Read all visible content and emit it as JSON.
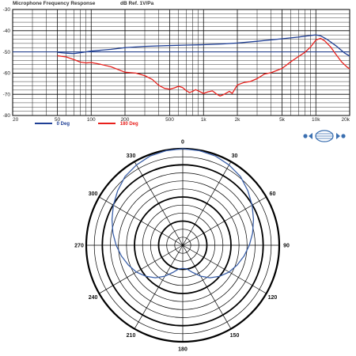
{
  "chart_data": [
    {
      "type": "line",
      "title": "Microphone Frequency Response",
      "reference": "dB Ref. 1V/Pa",
      "x_scale": "log",
      "xlim": [
        20,
        20000
      ],
      "ylim": [
        -80,
        -30
      ],
      "grid": true,
      "legend_placement": "bottom",
      "x_tick_labels": [
        {
          "v": 20,
          "t": "20"
        },
        {
          "v": 50,
          "t": "50"
        },
        {
          "v": 100,
          "t": "100"
        },
        {
          "v": 200,
          "t": "200"
        },
        {
          "v": 500,
          "t": "500"
        },
        {
          "v": 1000,
          "t": "1k"
        },
        {
          "v": 2000,
          "t": "2k"
        },
        {
          "v": 5000,
          "t": "5k"
        },
        {
          "v": 10000,
          "t": "10k"
        },
        {
          "v": 20000,
          "t": "20k"
        }
      ],
      "y_tick_labels": [
        {
          "v": -30,
          "t": "-30"
        },
        {
          "v": -40,
          "t": "-40"
        },
        {
          "v": -50,
          "t": "-50"
        },
        {
          "v": -60,
          "t": "-60"
        },
        {
          "v": -70,
          "t": "-70"
        },
        {
          "v": -80,
          "t": "-80"
        }
      ],
      "series": [
        {
          "name": "0 Deg",
          "color": "#1f3f95",
          "points": [
            [
              50,
              -50.2
            ],
            [
              60,
              -50.6
            ],
            [
              70,
              -50.8
            ],
            [
              85,
              -50.2
            ],
            [
              100,
              -49.6
            ],
            [
              150,
              -48.8
            ],
            [
              200,
              -48.0
            ],
            [
              300,
              -47.4
            ],
            [
              500,
              -47.0
            ],
            [
              700,
              -46.8
            ],
            [
              1000,
              -46.6
            ],
            [
              1500,
              -46.2
            ],
            [
              2000,
              -45.8
            ],
            [
              3000,
              -45.0
            ],
            [
              5000,
              -43.8
            ],
            [
              7000,
              -43.0
            ],
            [
              8500,
              -42.4
            ],
            [
              10000,
              -42.0
            ],
            [
              11000,
              -42.4
            ],
            [
              12500,
              -44.0
            ],
            [
              15000,
              -47.0
            ],
            [
              18000,
              -50.5
            ],
            [
              20000,
              -52.0
            ]
          ]
        },
        {
          "name": "180 Deg",
          "color": "#e8201c",
          "points": [
            [
              50,
              -51.8
            ],
            [
              60,
              -52.4
            ],
            [
              70,
              -53.6
            ],
            [
              80,
              -54.8
            ],
            [
              90,
              -55.2
            ],
            [
              100,
              -55.0
            ],
            [
              120,
              -55.8
            ],
            [
              150,
              -57.0
            ],
            [
              200,
              -59.6
            ],
            [
              250,
              -60.0
            ],
            [
              300,
              -61.2
            ],
            [
              350,
              -63.0
            ],
            [
              400,
              -65.8
            ],
            [
              450,
              -67.2
            ],
            [
              500,
              -67.6
            ],
            [
              550,
              -67.0
            ],
            [
              600,
              -66.2
            ],
            [
              650,
              -66.8
            ],
            [
              700,
              -68.2
            ],
            [
              750,
              -69.2
            ],
            [
              800,
              -68.6
            ],
            [
              850,
              -67.8
            ],
            [
              900,
              -68.4
            ],
            [
              1000,
              -69.6
            ],
            [
              1100,
              -68.8
            ],
            [
              1200,
              -68.4
            ],
            [
              1300,
              -69.8
            ],
            [
              1400,
              -70.8
            ],
            [
              1500,
              -70.2
            ],
            [
              1600,
              -69.4
            ],
            [
              1700,
              -68.6
            ],
            [
              1800,
              -69.6
            ],
            [
              2000,
              -65.6
            ],
            [
              2300,
              -64.4
            ],
            [
              2600,
              -64.0
            ],
            [
              3000,
              -62.6
            ],
            [
              3500,
              -60.4
            ],
            [
              4000,
              -59.8
            ],
            [
              5000,
              -57.8
            ],
            [
              6000,
              -54.6
            ],
            [
              7000,
              -52.2
            ],
            [
              8000,
              -50.2
            ],
            [
              9000,
              -47.6
            ],
            [
              10000,
              -44.4
            ],
            [
              11000,
              -43.6
            ],
            [
              12000,
              -44.8
            ],
            [
              13500,
              -47.6
            ],
            [
              15000,
              -51.0
            ],
            [
              17000,
              -54.8
            ],
            [
              19000,
              -57.2
            ],
            [
              20000,
              -58.0
            ]
          ]
        }
      ]
    },
    {
      "type": "polar",
      "angle_labels": [
        "0",
        "30",
        "60",
        "90",
        "120",
        "150",
        "180",
        "210",
        "240",
        "270",
        "300",
        "330"
      ],
      "radial_rings": 12,
      "bold_rings": [
        3,
        6,
        10,
        12
      ],
      "spoke_step_deg": 30,
      "series": [
        {
          "color": "#3a5fa8",
          "points": [
            [
              0,
              1.0
            ],
            [
              10,
              0.995
            ],
            [
              20,
              0.985
            ],
            [
              30,
              0.96
            ],
            [
              40,
              0.93
            ],
            [
              50,
              0.88
            ],
            [
              60,
              0.83
            ],
            [
              70,
              0.78
            ],
            [
              80,
              0.735
            ],
            [
              90,
              0.69
            ],
            [
              100,
              0.645
            ],
            [
              110,
              0.6
            ],
            [
              120,
              0.555
            ],
            [
              130,
              0.5
            ],
            [
              140,
              0.44
            ],
            [
              150,
              0.37
            ],
            [
              160,
              0.3
            ],
            [
              170,
              0.25
            ],
            [
              180,
              0.24
            ],
            [
              190,
              0.25
            ],
            [
              200,
              0.3
            ],
            [
              210,
              0.37
            ],
            [
              220,
              0.44
            ],
            [
              230,
              0.5
            ],
            [
              240,
              0.555
            ],
            [
              250,
              0.6
            ],
            [
              260,
              0.645
            ],
            [
              270,
              0.69
            ],
            [
              280,
              0.735
            ],
            [
              290,
              0.78
            ],
            [
              300,
              0.83
            ],
            [
              310,
              0.88
            ],
            [
              320,
              0.93
            ],
            [
              330,
              0.96
            ],
            [
              340,
              0.985
            ],
            [
              350,
              0.995
            ]
          ]
        }
      ]
    }
  ]
}
